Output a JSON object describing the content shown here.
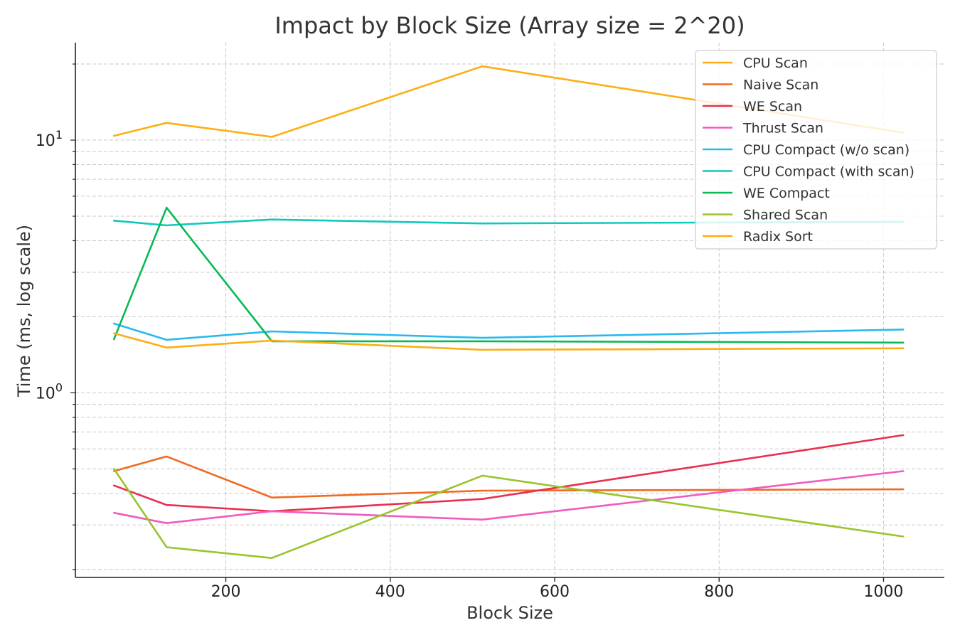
{
  "chart_data": {
    "type": "line",
    "title": "Impact by Block Size (Array size = 2^20)",
    "xlabel": "Block Size",
    "ylabel": "Time (ms, log scale)",
    "yscale": "log",
    "x": [
      64,
      128,
      256,
      512,
      1024
    ],
    "xlim": [
      17,
      1074
    ],
    "ylim": [
      0.186,
      24.3
    ],
    "x_ticks": [
      200,
      400,
      600,
      800,
      1000
    ],
    "x_tick_labels": [
      "200",
      "400",
      "600",
      "800",
      "1000"
    ],
    "y_ticks": [
      1,
      10
    ],
    "y_tick_label_base": "10",
    "y_tick_label_exponents": [
      "0",
      "1"
    ],
    "grid": true,
    "legend_position": "top-right",
    "series": [
      {
        "name": "CPU Scan",
        "color": "#fdae13",
        "values": [
          10.4,
          11.7,
          10.3,
          19.6,
          10.7
        ]
      },
      {
        "name": "Naive Scan",
        "color": "#ef6a22",
        "values": [
          0.49,
          0.56,
          0.385,
          0.41,
          0.415
        ]
      },
      {
        "name": "WE Scan",
        "color": "#e8304e",
        "values": [
          0.43,
          0.36,
          0.34,
          0.38,
          0.68
        ]
      },
      {
        "name": "Thrust Scan",
        "color": "#f05bc0",
        "values": [
          0.335,
          0.305,
          0.34,
          0.315,
          0.49
        ]
      },
      {
        "name": "CPU Compact (w/o scan)",
        "color": "#29b9ee",
        "values": [
          1.88,
          1.62,
          1.75,
          1.65,
          1.78
        ]
      },
      {
        "name": "CPU Compact (with scan)",
        "color": "#10c9bd",
        "values": [
          4.8,
          4.6,
          4.85,
          4.68,
          4.75
        ]
      },
      {
        "name": "WE Compact",
        "color": "#09b956",
        "values": [
          1.63,
          5.4,
          1.6,
          1.6,
          1.58
        ]
      },
      {
        "name": "Shared Scan",
        "color": "#99c42b",
        "values": [
          0.5,
          0.245,
          0.222,
          0.47,
          0.27
        ]
      },
      {
        "name": "Radix Sort",
        "color": "#fdae13",
        "values": [
          1.72,
          1.51,
          1.61,
          1.48,
          1.5
        ]
      }
    ]
  }
}
